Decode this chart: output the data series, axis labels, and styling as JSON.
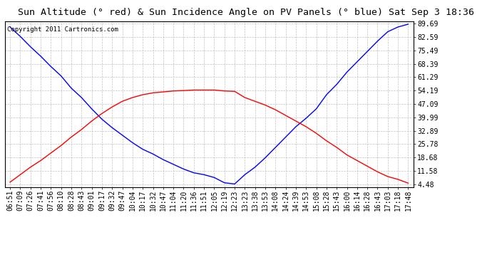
{
  "title": "Sun Altitude (° red) & Sun Incidence Angle on PV Panels (° blue) Sat Sep 3 18:36",
  "copyright": "Copyright 2011 Cartronics.com",
  "yticks": [
    4.48,
    11.58,
    18.68,
    25.78,
    32.89,
    39.99,
    47.09,
    54.19,
    61.29,
    68.39,
    75.49,
    82.59,
    89.69
  ],
  "ymin": 3.0,
  "ymax": 91.0,
  "x_labels": [
    "06:51",
    "07:09",
    "07:26",
    "07:41",
    "07:56",
    "08:10",
    "08:28",
    "08:43",
    "09:01",
    "09:17",
    "09:32",
    "09:47",
    "10:04",
    "10:17",
    "10:32",
    "10:47",
    "11:04",
    "11:20",
    "11:36",
    "11:51",
    "12:05",
    "12:19",
    "12:23",
    "13:23",
    "13:38",
    "13:53",
    "14:08",
    "14:24",
    "14:39",
    "14:53",
    "15:08",
    "15:28",
    "15:43",
    "16:00",
    "16:14",
    "16:28",
    "16:43",
    "17:03",
    "17:18",
    "17:48"
  ],
  "blue_y": [
    88.0,
    83.0,
    77.5,
    72.5,
    67.0,
    62.0,
    55.5,
    50.5,
    44.5,
    39.0,
    34.5,
    30.5,
    26.5,
    23.0,
    20.5,
    17.5,
    15.0,
    12.5,
    10.5,
    9.5,
    8.0,
    5.2,
    4.55,
    9.5,
    13.5,
    18.5,
    24.0,
    29.5,
    35.0,
    39.5,
    44.5,
    52.0,
    57.5,
    64.0,
    69.5,
    75.0,
    80.5,
    85.5,
    88.0,
    89.5
  ],
  "red_y": [
    5.5,
    9.5,
    13.5,
    17.0,
    21.0,
    25.0,
    29.5,
    33.5,
    38.0,
    42.0,
    45.5,
    48.5,
    50.5,
    52.0,
    53.0,
    53.5,
    54.0,
    54.2,
    54.5,
    54.5,
    54.5,
    54.0,
    53.8,
    50.5,
    48.5,
    46.5,
    44.0,
    41.0,
    38.0,
    35.0,
    31.5,
    27.5,
    24.0,
    20.0,
    17.0,
    14.0,
    11.0,
    8.5,
    7.0,
    5.0
  ],
  "blue_color": "blue",
  "red_color": "red",
  "bg_color": "#ffffff",
  "plot_bg": "#ffffff",
  "grid_color": "#bbbbbb",
  "title_fontsize": 9.5,
  "tick_fontsize": 7,
  "copyright_fontsize": 6.5
}
